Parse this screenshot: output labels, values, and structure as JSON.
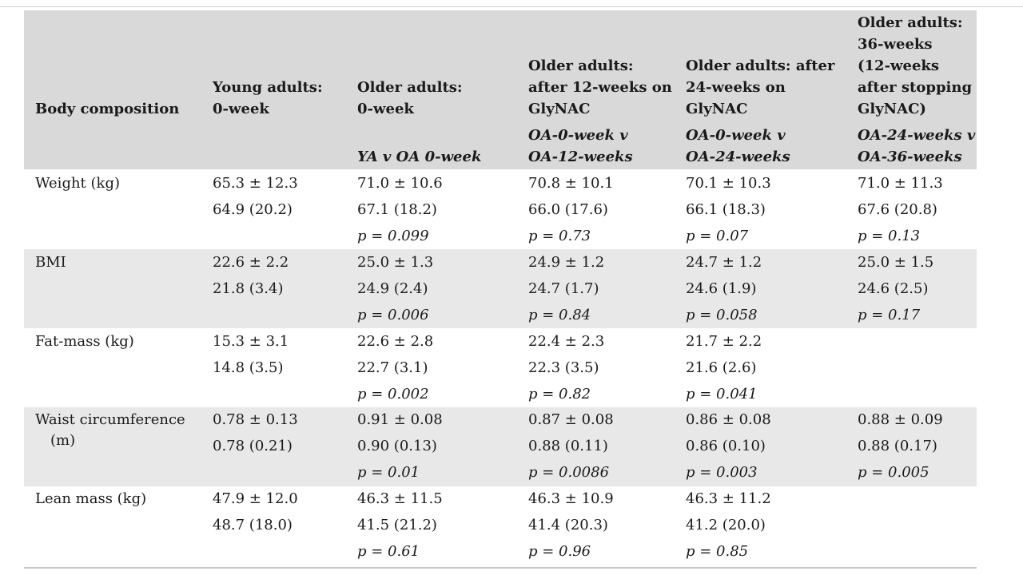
{
  "header": {
    "col0": "Body composition",
    "col1": [
      "Young adults:",
      "0-week"
    ],
    "col2": [
      "Older adults:",
      "0-week"
    ],
    "col2_sub": "YA v OA 0-week",
    "col3": [
      "Older adults:",
      "after 12-weeks on",
      "GlyNAC"
    ],
    "col3_sub": [
      "OA-0-week v",
      "OA-12-weeks"
    ],
    "col4": [
      "Older adults: after",
      "24-weeks on",
      "GlyNAC"
    ],
    "col4_sub": [
      "OA-0-week v",
      "OA-24-weeks"
    ],
    "col5": [
      "Older adults:",
      "36-weeks",
      "(12-weeks",
      "after stopping",
      "GlyNAC)"
    ],
    "col5_sub": [
      "OA-24-weeks v",
      "OA-36-weeks"
    ]
  },
  "rows": [
    {
      "label": [
        "Weight (kg)"
      ],
      "cells": [
        [
          "65.3 ± 12.3",
          "64.9 (20.2)",
          ""
        ],
        [
          "71.0 ± 10.6",
          "67.1 (18.2)",
          "p = 0.099"
        ],
        [
          "70.8 ± 10.1",
          "66.0 (17.6)",
          "p = 0.73"
        ],
        [
          "70.1 ± 10.3",
          "66.1 (18.3)",
          "p = 0.07"
        ],
        [
          "71.0 ± 11.3",
          "67.6 (20.8)",
          "p = 0.13"
        ]
      ]
    },
    {
      "label": [
        "BMI"
      ],
      "cells": [
        [
          "22.6 ± 2.2",
          "21.8 (3.4)",
          ""
        ],
        [
          "25.0 ± 1.3",
          "24.9 (2.4)",
          "p = 0.006"
        ],
        [
          "24.9 ± 1.2",
          "24.7 (1.7)",
          "p = 0.84"
        ],
        [
          "24.7 ± 1.2",
          "24.6 (1.9)",
          "p = 0.058"
        ],
        [
          "25.0 ± 1.5",
          "24.6 (2.5)",
          "p = 0.17"
        ]
      ]
    },
    {
      "label": [
        "Fat-mass (kg)"
      ],
      "cells": [
        [
          "15.3 ± 3.1",
          "14.8 (3.5)",
          ""
        ],
        [
          "22.6 ± 2.8",
          "22.7 (3.1)",
          "p = 0.002"
        ],
        [
          "22.4 ± 2.3",
          "22.3 (3.5)",
          "p = 0.82"
        ],
        [
          "21.7 ± 2.2",
          "21.6 (2.6)",
          "p = 0.041"
        ],
        [
          "",
          "",
          ""
        ]
      ]
    },
    {
      "label": [
        "Waist circumference",
        "(m)"
      ],
      "cells": [
        [
          "0.78 ± 0.13",
          "0.78 (0.21)",
          ""
        ],
        [
          "0.91 ± 0.08",
          "0.90 (0.13)",
          "p = 0.01"
        ],
        [
          "0.87 ± 0.08",
          "0.88 (0.11)",
          "p = 0.0086"
        ],
        [
          "0.86 ± 0.08",
          "0.86 (0.10)",
          "p = 0.003"
        ],
        [
          "0.88 ± 0.09",
          "0.88 (0.17)",
          "p = 0.005"
        ]
      ]
    },
    {
      "label": [
        "Lean mass (kg)"
      ],
      "cells": [
        [
          "47.9 ± 12.0",
          "48.7 (18.0)",
          ""
        ],
        [
          "46.3 ± 11.5",
          "41.5 (21.2)",
          "p = 0.61"
        ],
        [
          "46.3 ± 10.9",
          "41.4 (20.3)",
          "p = 0.96"
        ],
        [
          "46.3 ± 11.2",
          "41.2 (20.0)",
          "p = 0.85"
        ],
        [
          "",
          "",
          ""
        ]
      ]
    }
  ]
}
